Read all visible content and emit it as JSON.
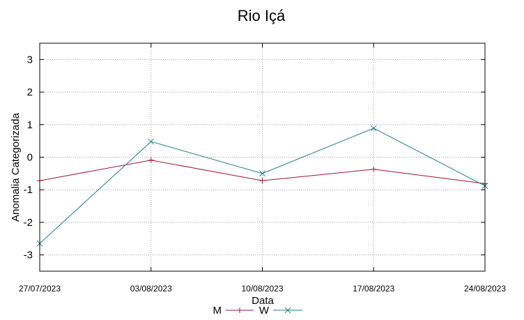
{
  "chart_data": {
    "type": "line",
    "title": "Rio Içá",
    "xlabel": "Data",
    "ylabel": "Anomalia Categorizada",
    "categories": [
      "27/07/2023",
      "03/08/2023",
      "10/08/2023",
      "17/08/2023",
      "24/08/2023"
    ],
    "yticks": [
      "3",
      "2",
      "1",
      "0",
      "-1",
      "-2",
      "-3"
    ],
    "ytick_values": [
      3,
      2,
      1,
      0,
      -1,
      -2,
      -3
    ],
    "ylim": [
      -3.5,
      3.5
    ],
    "grid": true,
    "legend_position": "bottom-center",
    "series": [
      {
        "name": "M",
        "marker": "plus",
        "color": "#a0152b",
        "values": [
          -0.72,
          -0.09,
          -0.72,
          -0.37,
          -0.81
        ]
      },
      {
        "name": "W",
        "marker": "x",
        "color": "#1f7d82",
        "values": [
          -2.65,
          0.48,
          -0.5,
          0.89,
          -0.88
        ]
      }
    ]
  }
}
